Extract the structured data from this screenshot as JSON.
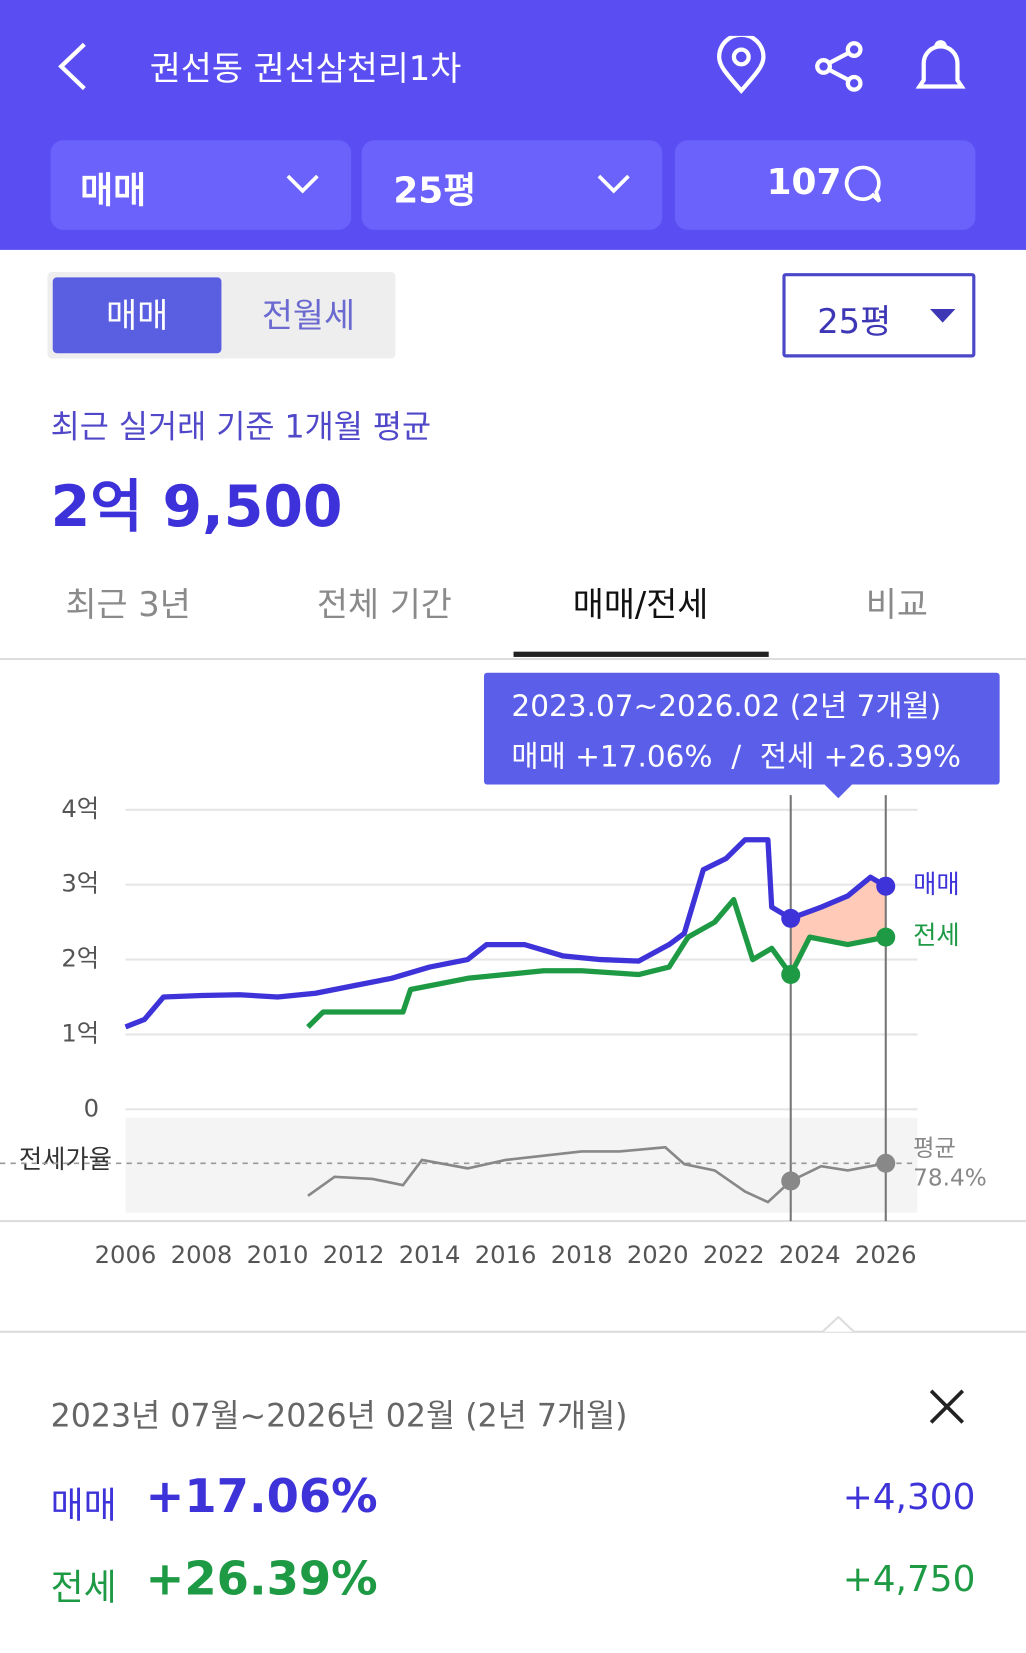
{
  "header": {
    "title": "권선동 권선삼천리1차",
    "filters": [
      "매매",
      "25평"
    ],
    "comment_count": "107"
  },
  "toggle": [
    "매매",
    "전월세"
  ],
  "size_select": "25평",
  "summary": {
    "label": "최근 실거래 기준 1개월 평균",
    "price": "2억 9,500"
  },
  "tabs": [
    "최근 3년",
    "전체 기간",
    "매매/전세",
    "비교"
  ],
  "tooltip": {
    "period": "2023.07~2026.02 (2년 7개월)",
    "text": "매매 +17.06%  /  전세 +26.39%"
  },
  "chart_data": {
    "type": "line",
    "xlim": [
      2006,
      2026
    ],
    "xticks": [
      2006,
      2008,
      2010,
      2012,
      2014,
      2016,
      2018,
      2020,
      2022,
      2024,
      2026
    ],
    "ylim": [
      0,
      4
    ],
    "yticks": [
      0,
      {
        "value": 1,
        "label": "1억"
      },
      {
        "value": 2,
        "label": "2억"
      },
      {
        "value": 3,
        "label": "3억"
      },
      {
        "value": 4,
        "label": "4억"
      }
    ],
    "grid": true,
    "highlight_range": [
      2023.5,
      2026
    ],
    "series": [
      {
        "name": "매매",
        "color": "#3d33d9",
        "x": [
          2006,
          2006.5,
          2007,
          2008,
          2009,
          2010,
          2011,
          2012,
          2013,
          2014,
          2015,
          2015.5,
          2016.5,
          2017.5,
          2018.5,
          2019.5,
          2020.3,
          2020.7,
          2021.2,
          2021.8,
          2022.3,
          2022.9,
          2023,
          2023.5,
          2024.3,
          2025,
          2025.6,
          2026
        ],
        "values": [
          1.1,
          1.2,
          1.5,
          1.52,
          1.53,
          1.5,
          1.55,
          1.65,
          1.75,
          1.9,
          2.0,
          2.2,
          2.2,
          2.05,
          2.0,
          1.98,
          2.2,
          2.35,
          3.2,
          3.35,
          3.6,
          3.6,
          2.7,
          2.55,
          2.7,
          2.85,
          3.1,
          2.98
        ]
      },
      {
        "name": "전세",
        "color": "#1e9a45",
        "x": [
          2010.8,
          2011.2,
          2012,
          2013.3,
          2013.5,
          2014.5,
          2015,
          2016,
          2017,
          2018,
          2019.5,
          2020.3,
          2020.8,
          2021.5,
          2022,
          2022.5,
          2023,
          2023.5,
          2024,
          2025,
          2026
        ],
        "values": [
          1.1,
          1.3,
          1.3,
          1.3,
          1.6,
          1.7,
          1.75,
          1.8,
          1.85,
          1.85,
          1.8,
          1.9,
          2.3,
          2.5,
          2.8,
          2.0,
          2.15,
          1.8,
          2.3,
          2.2,
          2.3
        ]
      }
    ],
    "ratio": {
      "name": "전세가율",
      "color": "#888888",
      "ylim": [
        55,
        100
      ],
      "x": [
        2010.8,
        2011.5,
        2012.5,
        2013.3,
        2013.8,
        2015,
        2016,
        2017,
        2018,
        2019,
        2020.2,
        2020.7,
        2021.5,
        2022.3,
        2022.9,
        2023.5,
        2024.3,
        2025,
        2026
      ],
      "values": [
        63,
        72,
        71,
        68,
        80,
        76,
        80,
        82,
        84,
        84,
        86,
        78,
        75,
        65,
        60,
        70,
        77,
        75,
        78.4
      ],
      "average_label": "평균",
      "average": {
        "value": 78.4,
        "label": "78.4%"
      }
    }
  },
  "detail": {
    "period": "2023년 07월~2026년 02월 (2년 7개월)",
    "rows": [
      {
        "name": "매매",
        "pct": "+17.06%",
        "diff": "+4,300"
      },
      {
        "name": "전세",
        "pct": "+26.39%",
        "diff": "+4,750"
      }
    ]
  }
}
